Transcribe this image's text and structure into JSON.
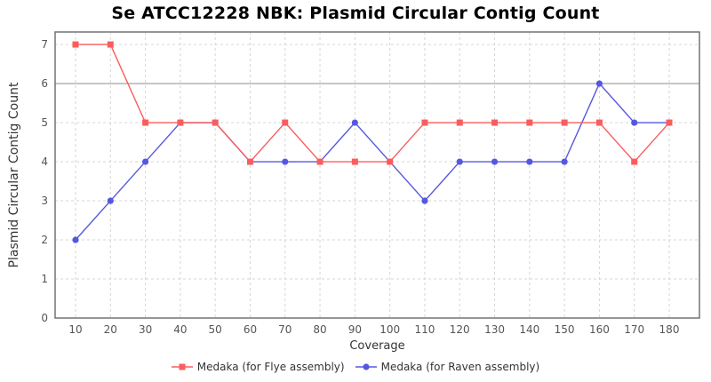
{
  "title": "Se ATCC12228 NBK: Plasmid Circular Contig Count",
  "chart_data": {
    "type": "line",
    "x": [
      10,
      20,
      30,
      40,
      50,
      60,
      70,
      80,
      90,
      100,
      110,
      120,
      130,
      140,
      150,
      160,
      170,
      180
    ],
    "xlabel": "Coverage",
    "ylabel": "Plasmid Circular Contig Count",
    "ylim": [
      0,
      7.32
    ],
    "yticks": [
      0,
      1,
      2,
      3,
      4,
      5,
      6,
      7
    ],
    "grid": "dashed",
    "reference_line_y": 6,
    "legend_position": "bottom",
    "series": [
      {
        "name": "Medaka (for Flye assembly)",
        "color": "#f95d5d",
        "marker": "square",
        "values": [
          7,
          7,
          5,
          5,
          5,
          4,
          5,
          4,
          4,
          4,
          5,
          5,
          5,
          5,
          5,
          5,
          4,
          5
        ]
      },
      {
        "name": "Medaka (for Raven assembly)",
        "color": "#5557e0",
        "marker": "circle",
        "values": [
          2,
          3,
          4,
          5,
          5,
          4,
          4,
          4,
          5,
          4,
          3,
          4,
          4,
          4,
          4,
          6,
          5,
          5
        ]
      }
    ]
  },
  "colors": {
    "background": "#ffffff",
    "grid": "#d6d6d6",
    "reference_line": "#9b9b9b",
    "frame": "#737373",
    "tick_text": "#555555",
    "axis_label_text": "#333333",
    "title_text": "#000000"
  }
}
